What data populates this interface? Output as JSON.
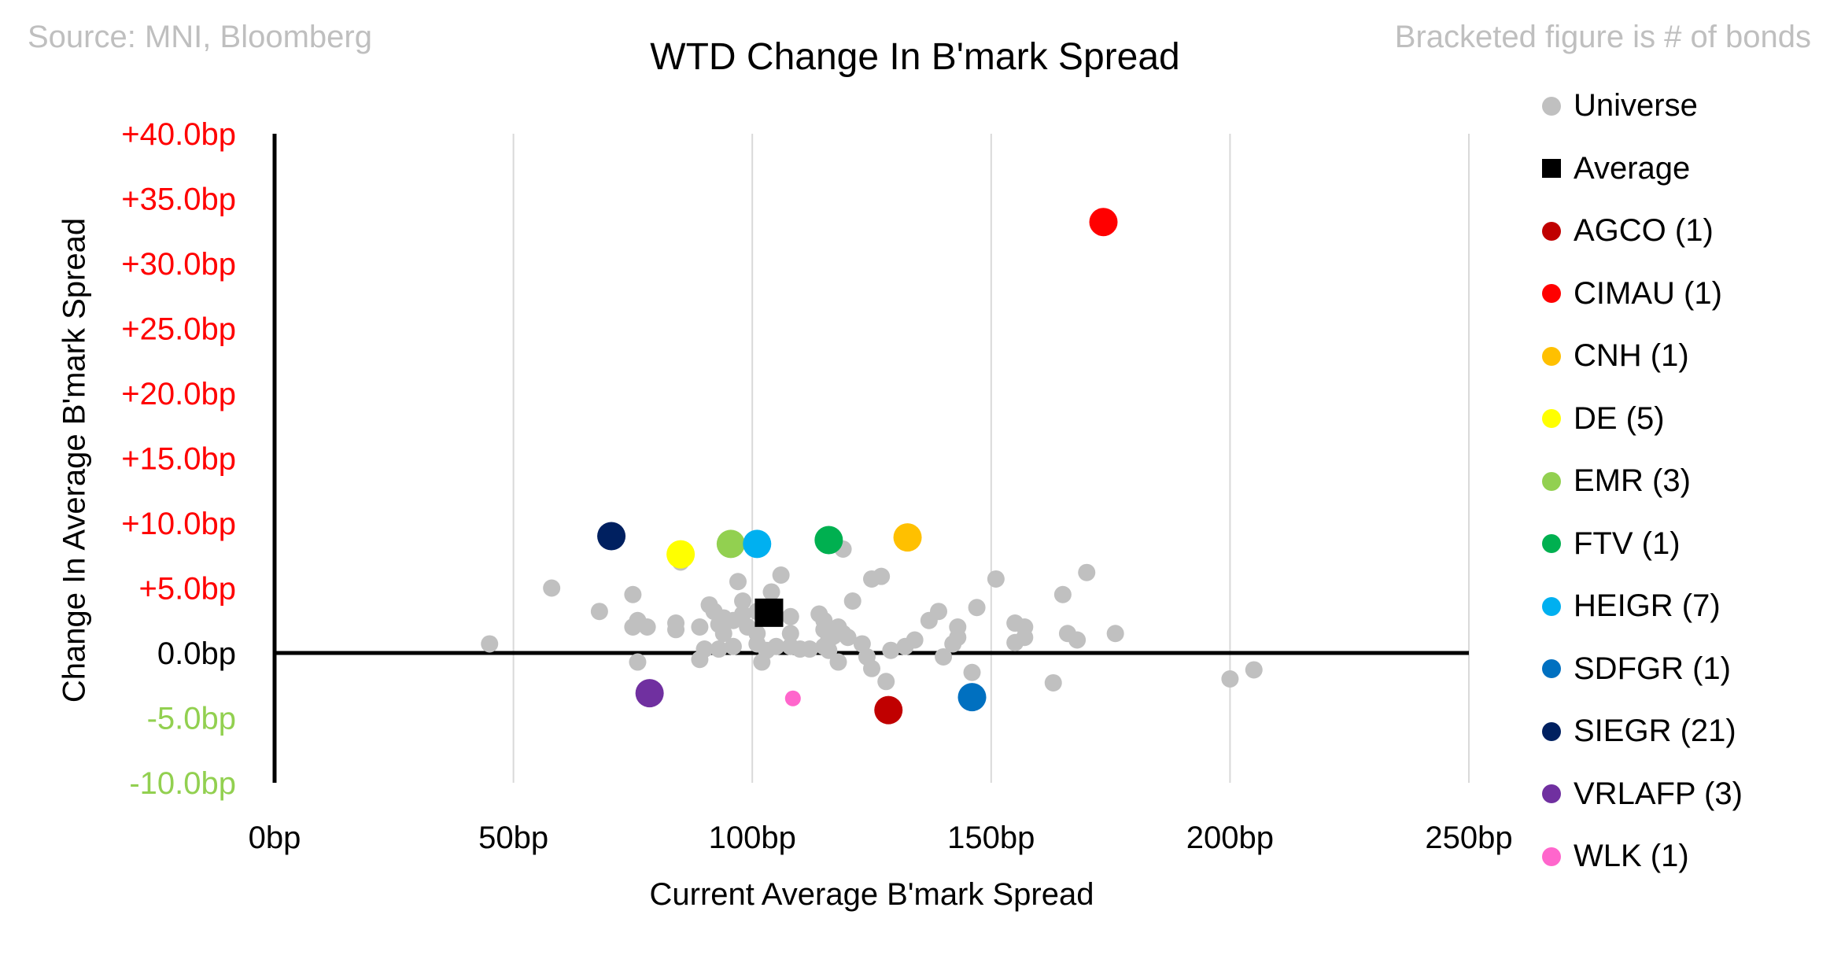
{
  "header": {
    "source": "Source: MNI, Bloomberg",
    "title": "WTD Change In B'mark Spread",
    "note": "Bracketed figure is # of bonds"
  },
  "chart_data": {
    "type": "scatter",
    "title": "WTD Change In B'mark Spread",
    "xlabel": "Current Average B'mark Spread",
    "ylabel": "Change In Average B'mark Spread",
    "xlim": [
      0,
      250
    ],
    "ylim": [
      -10,
      40
    ],
    "x_ticks": [
      "0bp",
      "50bp",
      "100bp",
      "150bp",
      "200bp",
      "250bp"
    ],
    "y_ticks": [
      "+40.0bp",
      "+35.0bp",
      "+30.0bp",
      "+25.0bp",
      "+20.0bp",
      "+15.0bp",
      "+10.0bp",
      "+5.0bp",
      "0.0bp",
      "-5.0bp",
      "-10.0bp"
    ],
    "y_tick_colors": {
      "positive": "#ff0000",
      "zero": "#000000",
      "negative": "#92d050"
    },
    "grid": "vertical",
    "legend_position": "right",
    "universe": {
      "name": "Universe",
      "color": "#c0c0c0",
      "points": [
        [
          45,
          0.7
        ],
        [
          58,
          5
        ],
        [
          68,
          3.2
        ],
        [
          75,
          4.5
        ],
        [
          75,
          2
        ],
        [
          76,
          2.5
        ],
        [
          76,
          -0.7
        ],
        [
          78,
          2
        ],
        [
          84,
          1.8
        ],
        [
          84,
          2.3
        ],
        [
          85,
          7
        ],
        [
          89,
          -0.5
        ],
        [
          90,
          0.3
        ],
        [
          89,
          2
        ],
        [
          91,
          3.7
        ],
        [
          92,
          3.2
        ],
        [
          93,
          2.2
        ],
        [
          93,
          0.3
        ],
        [
          94,
          1.5
        ],
        [
          94,
          2.7
        ],
        [
          96,
          2.5
        ],
        [
          96,
          0.5
        ],
        [
          97,
          5.5
        ],
        [
          98,
          3
        ],
        [
          98,
          4
        ],
        [
          99,
          2
        ],
        [
          101,
          0.7
        ],
        [
          101,
          1.5
        ],
        [
          101,
          3.2
        ],
        [
          102,
          -0.7
        ],
        [
          103,
          0.2
        ],
        [
          104,
          4.7
        ],
        [
          105,
          0.5
        ],
        [
          106,
          6
        ],
        [
          108,
          2.8
        ],
        [
          108,
          1.5
        ],
        [
          108,
          0.5
        ],
        [
          110,
          0.3
        ],
        [
          112,
          0.3
        ],
        [
          114,
          3
        ],
        [
          115,
          0.5
        ],
        [
          115,
          1.8
        ],
        [
          115,
          2.5
        ],
        [
          116,
          1
        ],
        [
          116,
          0.2
        ],
        [
          117,
          1.3
        ],
        [
          118,
          -0.7
        ],
        [
          118,
          2
        ],
        [
          119,
          1.5
        ],
        [
          119,
          8
        ],
        [
          120,
          1.2
        ],
        [
          121,
          4
        ],
        [
          123,
          0.7
        ],
        [
          124,
          -0.3
        ],
        [
          125,
          -1.2
        ],
        [
          125,
          5.7
        ],
        [
          127,
          5.9
        ],
        [
          128,
          -2.2
        ],
        [
          129,
          0.2
        ],
        [
          132,
          0.5
        ],
        [
          134,
          1
        ],
        [
          137,
          2.5
        ],
        [
          139,
          3.2
        ],
        [
          140,
          -0.3
        ],
        [
          142,
          0.7
        ],
        [
          143,
          1.2
        ],
        [
          143,
          2
        ],
        [
          146,
          -1.5
        ],
        [
          147,
          3.5
        ],
        [
          151,
          5.7
        ],
        [
          155,
          2.3
        ],
        [
          155,
          0.8
        ],
        [
          157,
          2
        ],
        [
          157,
          1.2
        ],
        [
          163,
          -2.3
        ],
        [
          165,
          4.5
        ],
        [
          166,
          1.5
        ],
        [
          168,
          1
        ],
        [
          170,
          6.2
        ],
        [
          176,
          1.5
        ],
        [
          200,
          -2
        ],
        [
          205,
          -1.3
        ]
      ]
    },
    "average": {
      "name": "Average",
      "x": 103.5,
      "y": 3.1,
      "color": "#000000"
    },
    "series": [
      {
        "name": "AGCO  (1)",
        "x": 128.5,
        "y": -4.4,
        "color": "#c00000"
      },
      {
        "name": "CIMAU  (1)",
        "x": 173.5,
        "y": 33.2,
        "color": "#ff0000"
      },
      {
        "name": "CNH  (1)",
        "x": 132.5,
        "y": 8.9,
        "color": "#ffc000"
      },
      {
        "name": "DE  (5)",
        "x": 85,
        "y": 7.6,
        "color": "#ffff00"
      },
      {
        "name": "EMR  (3)",
        "x": 95.5,
        "y": 8.4,
        "color": "#92d050"
      },
      {
        "name": "FTV  (1)",
        "x": 116,
        "y": 8.7,
        "color": "#00b050"
      },
      {
        "name": "HEIGR  (7)",
        "x": 101,
        "y": 8.4,
        "color": "#00b0f0"
      },
      {
        "name": "SDFGR  (1)",
        "x": 146,
        "y": -3.4,
        "color": "#0070c0"
      },
      {
        "name": "SIEGR  (21)",
        "x": 70.5,
        "y": 9,
        "color": "#002060"
      },
      {
        "name": "VRLAFP  (3)",
        "x": 78.5,
        "y": -3.1,
        "color": "#7030a0"
      },
      {
        "name": "WLK  (1)",
        "x": 108.5,
        "y": -3.5,
        "color": "#ff66cc",
        "marker": "small"
      }
    ]
  }
}
